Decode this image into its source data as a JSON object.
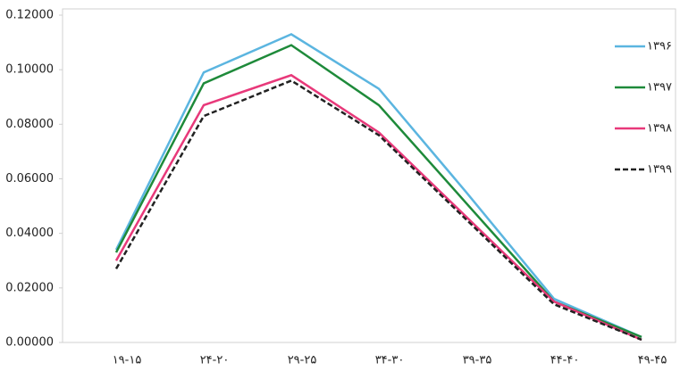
{
  "chart_data": {
    "type": "line",
    "categories": [
      "۱۹-۱۵",
      "۲۴-۲۰",
      "۲۹-۲۵",
      "۳۴-۳۰",
      "۳۹-۳۵",
      "۴۴-۴۰",
      "۴۹-۴۵"
    ],
    "series": [
      {
        "name": "۱۳۹۶",
        "color": "#5bb5e0",
        "dash": false,
        "values": [
          0.034,
          0.099,
          0.113,
          0.093,
          0.055,
          0.016,
          0.002
        ]
      },
      {
        "name": "۱۳۹۷",
        "color": "#1e8a3a",
        "dash": false,
        "values": [
          0.033,
          0.095,
          0.109,
          0.087,
          0.051,
          0.015,
          0.002
        ]
      },
      {
        "name": "۱۳۹۸",
        "color": "#e8397a",
        "dash": false,
        "values": [
          0.03,
          0.087,
          0.098,
          0.077,
          0.046,
          0.015,
          0.001
        ]
      },
      {
        "name": "۱۳۹۹",
        "color": "#222222",
        "dash": true,
        "values": [
          0.027,
          0.083,
          0.096,
          0.076,
          0.045,
          0.014,
          0.001
        ]
      }
    ],
    "ylim": [
      0,
      0.12
    ],
    "yticks": [
      {
        "value": 0,
        "label": "0.00000"
      },
      {
        "value": 0.02,
        "label": "0.02000"
      },
      {
        "value": 0.04,
        "label": "0.04000"
      },
      {
        "value": 0.06,
        "label": "0.06000"
      },
      {
        "value": 0.08,
        "label": "0.08000"
      },
      {
        "value": 0.1,
        "label": "0.10000"
      },
      {
        "value": 0.12,
        "label": "0.12000"
      }
    ],
    "legend": "right"
  }
}
